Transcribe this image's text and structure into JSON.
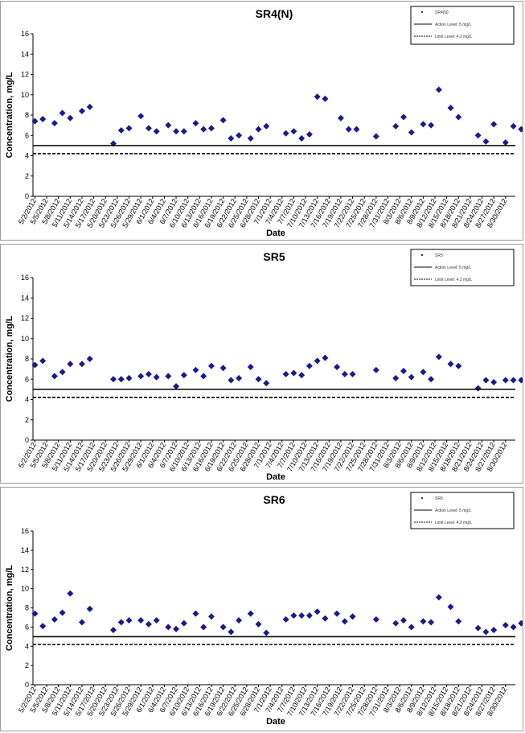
{
  "colors": {
    "marker": "#1a1a8c",
    "line": "#000000"
  },
  "x_tick_labels": [
    "5/2/2012",
    "5/5/2012",
    "5/8/2012",
    "5/11/2012",
    "5/14/2012",
    "5/17/2012",
    "5/20/2012",
    "5/23/2012",
    "5/26/2012",
    "5/29/2012",
    "6/1/2012",
    "6/4/2012",
    "6/7/2012",
    "6/10/2012",
    "6/13/2012",
    "6/16/2012",
    "6/19/2012",
    "6/22/2012",
    "6/25/2012",
    "6/28/2012",
    "7/1/2012",
    "7/4/2012",
    "7/7/2012",
    "7/10/2012",
    "7/13/2012",
    "7/16/2012",
    "7/19/2012",
    "7/22/2012",
    "7/25/2012",
    "7/28/2012",
    "7/31/2012",
    "8/3/2012",
    "8/6/2012",
    "8/9/2012",
    "8/12/2012",
    "8/15/2012",
    "8/18/2012",
    "8/21/2012",
    "8/24/2012",
    "8/27/2012",
    "8/30/2012"
  ],
  "chart_data": [
    {
      "type": "scatter",
      "title": "SR4(N)",
      "xlabel": "Date",
      "ylabel": "Concentration, mg/L",
      "ylim": [
        0,
        16
      ],
      "yticks": [
        0,
        2,
        4,
        6,
        8,
        10,
        12,
        14,
        16
      ],
      "grid": false,
      "legend_position": "top-right",
      "series": [
        {
          "name": "SR4(N)",
          "type": "scatter",
          "points": [
            [
              "2012-05-02",
              7.4
            ],
            [
              "2012-05-04",
              7.6
            ],
            [
              "2012-05-07",
              7.2
            ],
            [
              "2012-05-09",
              8.2
            ],
            [
              "2012-05-11",
              7.7
            ],
            [
              "2012-05-14",
              8.4
            ],
            [
              "2012-05-16",
              8.8
            ],
            [
              "2012-05-22",
              5.2
            ],
            [
              "2012-05-24",
              6.5
            ],
            [
              "2012-05-26",
              6.7
            ],
            [
              "2012-05-29",
              7.9
            ],
            [
              "2012-05-31",
              6.7
            ],
            [
              "2012-06-02",
              6.4
            ],
            [
              "2012-06-05",
              7.0
            ],
            [
              "2012-06-07",
              6.4
            ],
            [
              "2012-06-09",
              6.4
            ],
            [
              "2012-06-12",
              7.2
            ],
            [
              "2012-06-14",
              6.6
            ],
            [
              "2012-06-16",
              6.7
            ],
            [
              "2012-06-19",
              7.5
            ],
            [
              "2012-06-21",
              5.7
            ],
            [
              "2012-06-23",
              6.0
            ],
            [
              "2012-06-26",
              5.7
            ],
            [
              "2012-06-28",
              6.6
            ],
            [
              "2012-06-30",
              6.9
            ],
            [
              "2012-07-05",
              6.2
            ],
            [
              "2012-07-07",
              6.4
            ],
            [
              "2012-07-09",
              5.7
            ],
            [
              "2012-07-11",
              6.1
            ],
            [
              "2012-07-13",
              9.8
            ],
            [
              "2012-07-15",
              9.6
            ],
            [
              "2012-07-19",
              7.7
            ],
            [
              "2012-07-21",
              6.6
            ],
            [
              "2012-07-23",
              6.6
            ],
            [
              "2012-07-28",
              5.9
            ],
            [
              "2012-08-02",
              6.9
            ],
            [
              "2012-08-04",
              7.8
            ],
            [
              "2012-08-06",
              6.3
            ],
            [
              "2012-08-09",
              7.1
            ],
            [
              "2012-08-11",
              7.0
            ],
            [
              "2012-08-13",
              10.5
            ],
            [
              "2012-08-16",
              8.7
            ],
            [
              "2012-08-18",
              7.8
            ],
            [
              "2012-08-23",
              6.0
            ],
            [
              "2012-08-25",
              5.4
            ],
            [
              "2012-08-27",
              7.1
            ],
            [
              "2012-08-30",
              5.3
            ],
            [
              "2012-09-01",
              6.9
            ],
            [
              "2012-09-03",
              6.6
            ]
          ]
        },
        {
          "name": "Action Level: 5 mg/L",
          "type": "hline",
          "value": 5
        },
        {
          "name": "Limit Level: 4.2 mg/L",
          "type": "hline-dashed",
          "value": 4.2
        }
      ]
    },
    {
      "type": "scatter",
      "title": "SR5",
      "xlabel": "Date",
      "ylabel": "Concentration, mg/L",
      "ylim": [
        0,
        16
      ],
      "yticks": [
        0,
        2,
        4,
        6,
        8,
        10,
        12,
        14,
        16
      ],
      "grid": false,
      "legend_position": "top-right",
      "series": [
        {
          "name": "SR5",
          "type": "scatter",
          "points": [
            [
              "2012-05-02",
              7.4
            ],
            [
              "2012-05-04",
              7.8
            ],
            [
              "2012-05-07",
              6.3
            ],
            [
              "2012-05-09",
              6.7
            ],
            [
              "2012-05-11",
              7.5
            ],
            [
              "2012-05-14",
              7.5
            ],
            [
              "2012-05-16",
              8.0
            ],
            [
              "2012-05-22",
              6.0
            ],
            [
              "2012-05-24",
              6.0
            ],
            [
              "2012-05-26",
              6.1
            ],
            [
              "2012-05-29",
              6.3
            ],
            [
              "2012-05-31",
              6.5
            ],
            [
              "2012-06-02",
              6.2
            ],
            [
              "2012-06-05",
              6.3
            ],
            [
              "2012-06-07",
              5.3
            ],
            [
              "2012-06-09",
              6.4
            ],
            [
              "2012-06-12",
              6.9
            ],
            [
              "2012-06-14",
              6.3
            ],
            [
              "2012-06-16",
              7.3
            ],
            [
              "2012-06-19",
              7.1
            ],
            [
              "2012-06-21",
              5.9
            ],
            [
              "2012-06-23",
              6.1
            ],
            [
              "2012-06-26",
              7.2
            ],
            [
              "2012-06-28",
              6.0
            ],
            [
              "2012-06-30",
              5.6
            ],
            [
              "2012-07-05",
              6.5
            ],
            [
              "2012-07-07",
              6.6
            ],
            [
              "2012-07-09",
              6.4
            ],
            [
              "2012-07-11",
              7.3
            ],
            [
              "2012-07-13",
              7.8
            ],
            [
              "2012-07-15",
              8.1
            ],
            [
              "2012-07-18",
              7.2
            ],
            [
              "2012-07-20",
              6.5
            ],
            [
              "2012-07-22",
              6.5
            ],
            [
              "2012-07-28",
              6.9
            ],
            [
              "2012-08-02",
              6.1
            ],
            [
              "2012-08-04",
              6.8
            ],
            [
              "2012-08-06",
              6.2
            ],
            [
              "2012-08-09",
              6.7
            ],
            [
              "2012-08-11",
              6.0
            ],
            [
              "2012-08-13",
              8.2
            ],
            [
              "2012-08-16",
              7.5
            ],
            [
              "2012-08-18",
              7.3
            ],
            [
              "2012-08-23",
              5.1
            ],
            [
              "2012-08-25",
              5.9
            ],
            [
              "2012-08-27",
              5.7
            ],
            [
              "2012-08-30",
              5.9
            ],
            [
              "2012-09-01",
              5.9
            ],
            [
              "2012-09-03",
              5.9
            ]
          ]
        },
        {
          "name": "Action Level: 5 mg/L",
          "type": "hline",
          "value": 5
        },
        {
          "name": "Limit Level: 4.2 mg/L",
          "type": "hline-dashed",
          "value": 4.2
        }
      ]
    },
    {
      "type": "scatter",
      "title": "SR6",
      "xlabel": "Date",
      "ylabel": "Concentration, mg/L",
      "ylim": [
        0,
        16
      ],
      "yticks": [
        0,
        2,
        4,
        6,
        8,
        10,
        12,
        14,
        16
      ],
      "grid": false,
      "legend_position": "top-right",
      "series": [
        {
          "name": "SR6",
          "type": "scatter",
          "points": [
            [
              "2012-05-02",
              7.4
            ],
            [
              "2012-05-04",
              6.1
            ],
            [
              "2012-05-07",
              6.8
            ],
            [
              "2012-05-09",
              7.5
            ],
            [
              "2012-05-11",
              9.5
            ],
            [
              "2012-05-14",
              6.5
            ],
            [
              "2012-05-16",
              7.9
            ],
            [
              "2012-05-22",
              5.7
            ],
            [
              "2012-05-24",
              6.5
            ],
            [
              "2012-05-26",
              6.7
            ],
            [
              "2012-05-29",
              6.7
            ],
            [
              "2012-05-31",
              6.3
            ],
            [
              "2012-06-02",
              6.7
            ],
            [
              "2012-06-05",
              6.0
            ],
            [
              "2012-06-07",
              5.8
            ],
            [
              "2012-06-09",
              6.4
            ],
            [
              "2012-06-12",
              7.4
            ],
            [
              "2012-06-14",
              6.0
            ],
            [
              "2012-06-16",
              7.1
            ],
            [
              "2012-06-19",
              6.0
            ],
            [
              "2012-06-21",
              5.5
            ],
            [
              "2012-06-23",
              6.7
            ],
            [
              "2012-06-26",
              7.4
            ],
            [
              "2012-06-28",
              6.3
            ],
            [
              "2012-06-30",
              5.4
            ],
            [
              "2012-07-05",
              6.8
            ],
            [
              "2012-07-07",
              7.2
            ],
            [
              "2012-07-09",
              7.2
            ],
            [
              "2012-07-11",
              7.2
            ],
            [
              "2012-07-13",
              7.6
            ],
            [
              "2012-07-15",
              6.9
            ],
            [
              "2012-07-18",
              7.4
            ],
            [
              "2012-07-20",
              6.6
            ],
            [
              "2012-07-22",
              7.1
            ],
            [
              "2012-07-28",
              6.8
            ],
            [
              "2012-08-02",
              6.4
            ],
            [
              "2012-08-04",
              6.7
            ],
            [
              "2012-08-06",
              6.0
            ],
            [
              "2012-08-09",
              6.6
            ],
            [
              "2012-08-11",
              6.5
            ],
            [
              "2012-08-13",
              9.1
            ],
            [
              "2012-08-16",
              8.1
            ],
            [
              "2012-08-18",
              6.6
            ],
            [
              "2012-08-23",
              5.9
            ],
            [
              "2012-08-25",
              5.5
            ],
            [
              "2012-08-27",
              5.7
            ],
            [
              "2012-08-30",
              6.2
            ],
            [
              "2012-09-01",
              6.0
            ],
            [
              "2012-09-03",
              6.4
            ]
          ]
        },
        {
          "name": "Action Level: 5 mg/L",
          "type": "hline",
          "value": 5
        },
        {
          "name": "Limit Level: 4.2 mg/L",
          "type": "hline-dashed",
          "value": 4.2
        }
      ]
    }
  ]
}
